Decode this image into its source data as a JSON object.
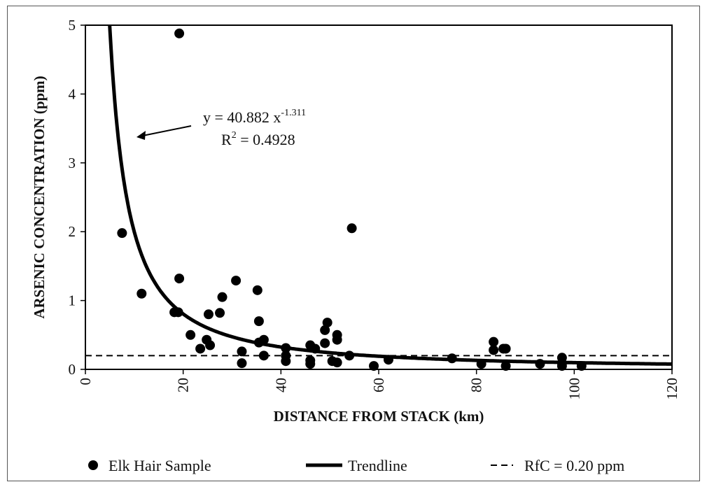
{
  "chart_data": {
    "type": "scatter",
    "xlabel": "DISTANCE FROM STACK (km)",
    "ylabel": "ARSENIC CONCENTRATION (ppm)",
    "xlim": [
      0,
      120
    ],
    "ylim": [
      0,
      5
    ],
    "x_ticks": [
      "0",
      "20",
      "40",
      "60",
      "80",
      "100",
      "120"
    ],
    "y_ticks": [
      "0",
      "1",
      "2",
      "3",
      "4",
      "5"
    ],
    "grid": false,
    "legend_position": "bottom",
    "series": [
      {
        "name": "Elk Hair Sample",
        "kind": "points",
        "color": "#000000",
        "points": [
          [
            19.2,
            4.88
          ],
          [
            7.5,
            1.98
          ],
          [
            11.5,
            1.1
          ],
          [
            18.2,
            0.83
          ],
          [
            19.0,
            0.83
          ],
          [
            19.2,
            1.32
          ],
          [
            21.5,
            0.5
          ],
          [
            23.5,
            0.3
          ],
          [
            24.8,
            0.43
          ],
          [
            25.2,
            0.8
          ],
          [
            25.5,
            0.35
          ],
          [
            27.5,
            0.82
          ],
          [
            28.0,
            1.05
          ],
          [
            30.8,
            1.29
          ],
          [
            32.0,
            0.26
          ],
          [
            32.0,
            0.09
          ],
          [
            35.2,
            1.15
          ],
          [
            35.5,
            0.7
          ],
          [
            35.5,
            0.39
          ],
          [
            36.5,
            0.43
          ],
          [
            36.5,
            0.2
          ],
          [
            41.0,
            0.31
          ],
          [
            41.0,
            0.2
          ],
          [
            41.0,
            0.12
          ],
          [
            46.0,
            0.35
          ],
          [
            46.0,
            0.13
          ],
          [
            46.0,
            0.08
          ],
          [
            47.0,
            0.3
          ],
          [
            49.0,
            0.38
          ],
          [
            49.0,
            0.57
          ],
          [
            49.5,
            0.68
          ],
          [
            50.5,
            0.12
          ],
          [
            51.5,
            0.5
          ],
          [
            51.5,
            0.43
          ],
          [
            51.5,
            0.1
          ],
          [
            54.0,
            0.2
          ],
          [
            54.5,
            2.05
          ],
          [
            59.0,
            0.05
          ],
          [
            62.0,
            0.14
          ],
          [
            75.0,
            0.16
          ],
          [
            81.0,
            0.08
          ],
          [
            83.5,
            0.4
          ],
          [
            83.5,
            0.28
          ],
          [
            85.5,
            0.3
          ],
          [
            86.0,
            0.3
          ],
          [
            86.0,
            0.05
          ],
          [
            93.0,
            0.08
          ],
          [
            97.5,
            0.17
          ],
          [
            97.5,
            0.09
          ],
          [
            97.5,
            0.05
          ],
          [
            101.5,
            0.05
          ]
        ]
      },
      {
        "name": "Trendline",
        "kind": "power-fit",
        "coefficient": 40.882,
        "exponent": -1.311,
        "color": "#000000"
      },
      {
        "name": "RfC = 0.20 ppm",
        "kind": "reference-line",
        "value": 0.2,
        "color": "#000000"
      }
    ],
    "annotation": {
      "equation_prefix": "y = 40.882 x",
      "equation_exponent": "-1.311",
      "r2_prefix": "R",
      "r2_exponent": "2",
      "r2_value": " = 0.4928"
    },
    "legend": [
      {
        "label": "Elk Hair Sample",
        "symbol": "dot"
      },
      {
        "label": "Trendline",
        "symbol": "thick-line"
      },
      {
        "label": "RfC = 0.20 ppm",
        "symbol": "dashed-line"
      }
    ]
  }
}
